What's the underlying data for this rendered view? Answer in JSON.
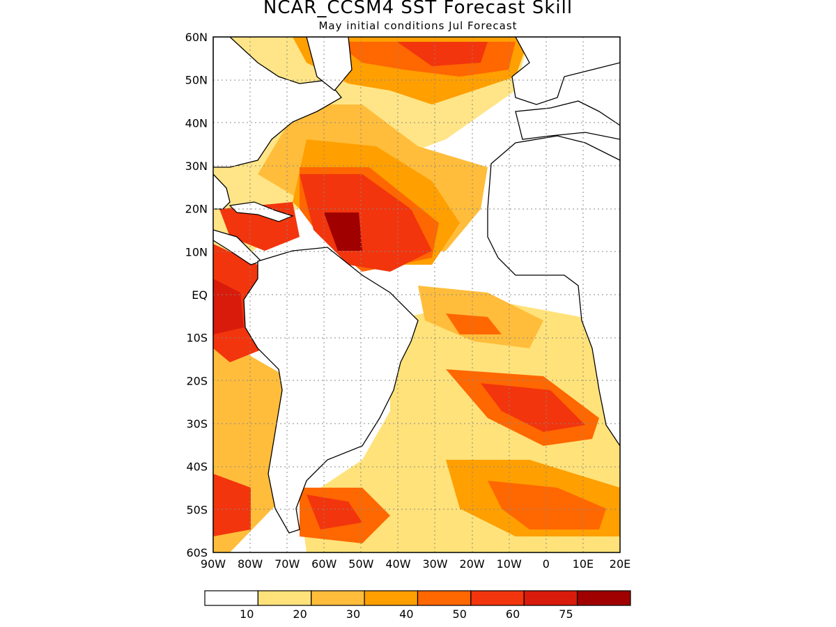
{
  "header": {
    "title": "NCAR_CCSM4 SST Forecast Skill",
    "subtitle": "May initial conditions  Jul Forecast"
  },
  "map": {
    "lat_labels": [
      "60N",
      "50N",
      "40N",
      "30N",
      "20N",
      "10N",
      "EQ",
      "10S",
      "20S",
      "30S",
      "40S",
      "50S",
      "60S"
    ],
    "lon_labels": [
      "90W",
      "80W",
      "70W",
      "60W",
      "50W",
      "40W",
      "30W",
      "20W",
      "10W",
      "0",
      "10E",
      "20E"
    ],
    "region": {
      "lon_min": -90,
      "lon_max": 20,
      "lat_min": -60,
      "lat_max": 60
    },
    "gridlines": "dotted"
  },
  "colorbar": {
    "labels": [
      "10",
      "20",
      "30",
      "40",
      "50",
      "60",
      "75"
    ],
    "colors": [
      "#ffffff",
      "#ffe27a",
      "#ffbd3b",
      "#ff9f00",
      "#ff6700",
      "#f2350d",
      "#d81b0a",
      "#a00000"
    ]
  }
}
